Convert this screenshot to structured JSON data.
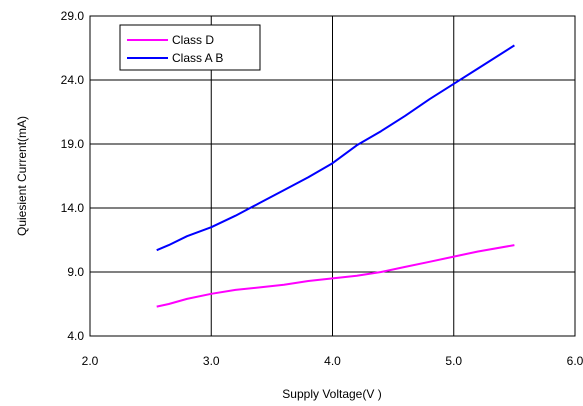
{
  "chart_data": {
    "type": "line",
    "title": "",
    "xlabel": "Supply Voltage(V )",
    "ylabel": "Quiesient Current(mA)",
    "xlim": [
      2.0,
      6.0
    ],
    "ylim": [
      4.0,
      29.0
    ],
    "xticks": [
      2.0,
      3.0,
      4.0,
      5.0,
      6.0
    ],
    "yticks": [
      4.0,
      9.0,
      14.0,
      19.0,
      24.0,
      29.0
    ],
    "xtick_labels": [
      "2.0",
      "3.0",
      "4.0",
      "5.0",
      "6.0"
    ],
    "ytick_labels": [
      "4.0",
      "9.0",
      "14.0",
      "19.0",
      "24.0",
      "29.0"
    ],
    "grid": true,
    "legend_position": "top-left",
    "series": [
      {
        "name": "Class D",
        "color": "#ff00ff",
        "x": [
          2.55,
          2.65,
          2.8,
          3.0,
          3.2,
          3.4,
          3.6,
          3.8,
          4.0,
          4.2,
          4.4,
          4.6,
          4.8,
          5.0,
          5.2,
          5.5
        ],
        "y": [
          6.3,
          6.5,
          6.9,
          7.3,
          7.6,
          7.8,
          8.0,
          8.3,
          8.5,
          8.7,
          9.0,
          9.4,
          9.8,
          10.2,
          10.6,
          11.1
        ]
      },
      {
        "name": "Class A B",
        "color": "#0000ff",
        "x": [
          2.55,
          2.65,
          2.8,
          3.0,
          3.2,
          3.4,
          3.6,
          3.8,
          4.0,
          4.2,
          4.4,
          4.6,
          4.8,
          5.0,
          5.2,
          5.5
        ],
        "y": [
          10.7,
          11.1,
          11.8,
          12.5,
          13.4,
          14.4,
          15.4,
          16.4,
          17.5,
          18.9,
          20.0,
          21.2,
          22.5,
          23.7,
          24.9,
          26.7
        ]
      }
    ]
  }
}
